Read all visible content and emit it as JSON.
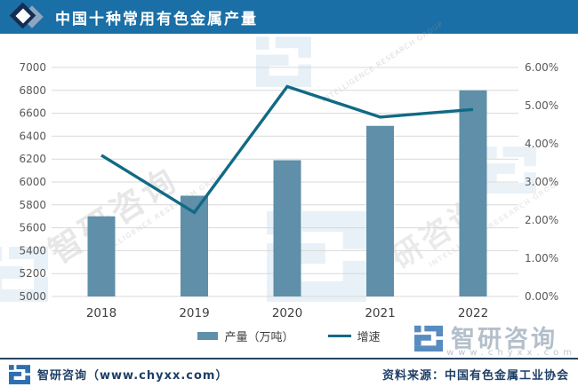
{
  "header": {
    "title": "中国十种常用有色金属产量"
  },
  "chart_data": {
    "type": "bar+line combo",
    "categories": [
      "2018",
      "2019",
      "2020",
      "2021",
      "2022"
    ],
    "series": [
      {
        "name": "产量（万吨）",
        "type": "bar",
        "axis": "left",
        "color": "#5f8fa9",
        "values": [
          5700,
          5880,
          6190,
          6490,
          6800
        ]
      },
      {
        "name": "增速",
        "type": "line",
        "axis": "right",
        "color": "#116a85",
        "values": [
          3.7,
          2.2,
          5.5,
          4.7,
          4.9
        ]
      }
    ],
    "left_axis": {
      "min": 5000,
      "max": 7000,
      "step": 200,
      "tick_labels": [
        "5000",
        "5200",
        "5400",
        "5600",
        "5800",
        "6000",
        "6200",
        "6400",
        "6600",
        "6800",
        "7000"
      ]
    },
    "right_axis": {
      "min": 0,
      "max": 6,
      "step": 1,
      "decimals": 2,
      "suffix": "%",
      "tick_labels": [
        "0.00%",
        "1.00%",
        "2.00%",
        "3.00%",
        "4.00%",
        "5.00%",
        "6.00%"
      ]
    },
    "grid": true,
    "legend_position": "bottom",
    "title": "中国十种常用有色金属产量"
  },
  "watermarks": {
    "company": "智研咨询",
    "company_partial": "研咨询",
    "caption": "INTELLIGENCE RESEARCH GROUP"
  },
  "brand": {
    "name": "智研咨询"
  },
  "footer": {
    "brand_text": "智研咨询（www.chyxx.com）",
    "source_text": "资料来源：中国有色金属工业协会",
    "url_watermark": "www.chyxx.com"
  },
  "colors": {
    "header_bg": "#1a6fa6",
    "bar": "#5f8fa9",
    "line": "#116a85",
    "grid": "#d9d9d9",
    "axis_text": "#595959",
    "footer_text": "#1e3f66",
    "brand_blue": "#2f6fb0"
  }
}
